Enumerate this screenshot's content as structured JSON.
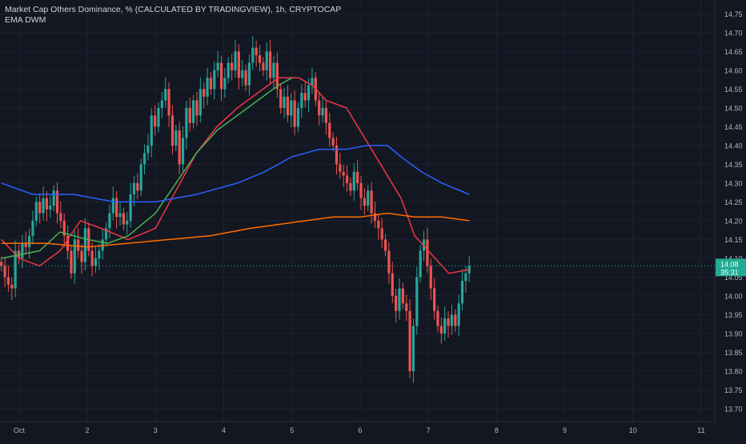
{
  "legend": {
    "title": "Market Cap Others Dominance, % (CALCULATED BY TRADINGVIEW), 1h, CRYPTOCAP",
    "indicator": "EMA DWM"
  },
  "colors": {
    "background": "#131722",
    "grid": "#1e2230",
    "up": "#26a69a",
    "down": "#ef5350",
    "ema_red": "#f23645",
    "ema_green": "#4caf50",
    "ema_blue": "#2962ff",
    "ema_orange": "#ff6d00",
    "price_label_bg": "#22ab94"
  },
  "chart_data": {
    "type": "candlestick",
    "ylim": [
      13.67,
      14.77
    ],
    "y_ticks": [
      "14.75",
      "14.70",
      "14.65",
      "14.60",
      "14.55",
      "14.50",
      "14.45",
      "14.40",
      "14.35",
      "14.30",
      "14.25",
      "14.20",
      "14.15",
      "14.10",
      "14.05",
      "14.00",
      "13.95",
      "13.90",
      "13.85",
      "13.80",
      "13.75",
      "13.70"
    ],
    "x_ticks": [
      {
        "label": "Oct",
        "t": 0
      },
      {
        "label": "2",
        "t": 1
      },
      {
        "label": "3",
        "t": 2
      },
      {
        "label": "4",
        "t": 3
      },
      {
        "label": "5",
        "t": 4
      },
      {
        "label": "6",
        "t": 5
      },
      {
        "label": "7",
        "t": 6
      },
      {
        "label": "8",
        "t": 7
      },
      {
        "label": "9",
        "t": 8
      },
      {
        "label": "10",
        "t": 9
      },
      {
        "label": "11",
        "t": 10
      }
    ],
    "x_range": [
      -0.28,
      10.2
    ],
    "current_price": {
      "value": "14.08",
      "countdown": "35:31"
    },
    "candle_interval_days": 0.04167,
    "candle_start_t": -0.26,
    "close_series": [
      14.08,
      14.05,
      14.03,
      14.02,
      14.12,
      14.1,
      14.14,
      14.13,
      14.16,
      14.2,
      14.25,
      14.22,
      14.26,
      14.23,
      14.24,
      14.28,
      14.22,
      14.2,
      14.16,
      14.12,
      14.06,
      14.15,
      14.12,
      14.09,
      14.18,
      14.12,
      14.08,
      14.1,
      14.12,
      14.15,
      14.18,
      14.22,
      14.26,
      14.21,
      14.22,
      14.19,
      14.2,
      14.27,
      14.3,
      14.28,
      14.35,
      14.38,
      14.4,
      14.48,
      14.45,
      14.5,
      14.52,
      14.55,
      14.48,
      14.4,
      14.44,
      14.35,
      14.42,
      14.5,
      14.46,
      14.52,
      14.48,
      14.55,
      14.53,
      14.58,
      14.55,
      14.6,
      14.62,
      14.55,
      14.58,
      14.62,
      14.6,
      14.65,
      14.58,
      14.6,
      14.56,
      14.62,
      14.66,
      14.64,
      14.62,
      14.6,
      14.65,
      14.58,
      14.62,
      14.55,
      14.5,
      14.53,
      14.48,
      14.52,
      14.45,
      14.5,
      14.54,
      14.52,
      14.56,
      14.58,
      14.52,
      14.48,
      14.5,
      14.46,
      14.42,
      14.4,
      14.35,
      14.33,
      14.32,
      14.3,
      14.28,
      14.33,
      14.3,
      14.26,
      14.24,
      14.28,
      14.22,
      14.2,
      14.18,
      14.15,
      14.12,
      14.06,
      14.0,
      13.96,
      14.02,
      13.98,
      13.96,
      13.8,
      13.92,
      14.05,
      14.12,
      14.15,
      14.08,
      14.02,
      13.96,
      13.92,
      13.9,
      13.94,
      13.92,
      13.95,
      13.92,
      13.98,
      14.04,
      14.06,
      14.08
    ],
    "series": [
      {
        "name": "",
        "color": "#f23645",
        "t": [
          -0.26,
          0.0,
          0.3,
          0.6,
          0.9,
          1.2,
          1.6,
          2.0,
          2.3,
          2.6,
          2.9,
          3.2,
          3.5,
          3.8,
          4.1,
          4.3,
          4.5,
          4.8,
          5.0,
          5.3,
          5.6,
          5.8,
          6.1,
          6.3,
          6.6
        ],
        "v": [
          14.15,
          14.1,
          14.08,
          14.12,
          14.2,
          14.18,
          14.15,
          14.18,
          14.28,
          14.38,
          14.45,
          14.5,
          14.54,
          14.58,
          14.58,
          14.56,
          14.52,
          14.5,
          14.44,
          14.35,
          14.26,
          14.16,
          14.1,
          14.06,
          14.07
        ]
      },
      {
        "name": "",
        "color": "#4caf50",
        "t": [
          -0.26,
          0.3,
          0.6,
          1.0,
          1.3,
          1.6,
          2.0,
          2.3,
          2.6,
          2.9,
          3.2,
          3.5,
          3.8,
          4.0
        ],
        "v": [
          14.1,
          14.12,
          14.17,
          14.15,
          14.14,
          14.16,
          14.22,
          14.3,
          14.38,
          14.44,
          14.48,
          14.52,
          14.56,
          14.58
        ]
      },
      {
        "name": "",
        "color": "#2962ff",
        "t": [
          -0.26,
          0.2,
          0.8,
          1.4,
          2.0,
          2.6,
          3.2,
          3.6,
          4.0,
          4.4,
          4.8,
          5.1,
          5.4,
          5.6,
          5.9,
          6.2,
          6.6
        ],
        "v": [
          14.3,
          14.27,
          14.27,
          14.25,
          14.25,
          14.27,
          14.3,
          14.33,
          14.37,
          14.39,
          14.39,
          14.4,
          14.4,
          14.37,
          14.33,
          14.3,
          14.27
        ]
      },
      {
        "name": "",
        "color": "#ff6d00",
        "t": [
          -0.26,
          0.4,
          1.0,
          1.6,
          2.2,
          2.8,
          3.4,
          3.8,
          4.2,
          4.6,
          5.0,
          5.4,
          5.8,
          6.2,
          6.6
        ],
        "v": [
          14.14,
          14.14,
          14.13,
          14.14,
          14.15,
          14.16,
          14.18,
          14.19,
          14.2,
          14.21,
          14.21,
          14.22,
          14.21,
          14.21,
          14.2
        ]
      }
    ],
    "price_line": 14.08
  }
}
